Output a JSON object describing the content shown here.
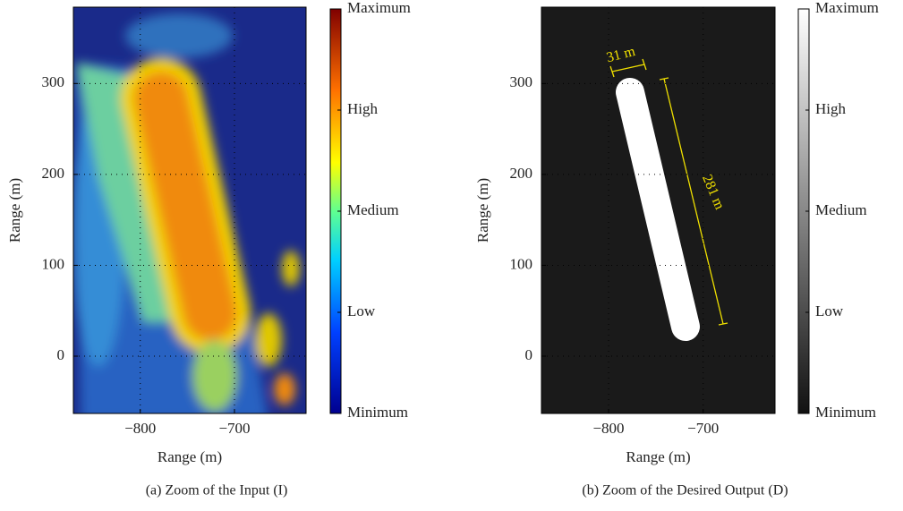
{
  "chart_data": [
    {
      "type": "image",
      "colormap": "jet",
      "xlabel": "Range (m)",
      "ylabel": "Range (m)",
      "xlim": [
        -871,
        -624
      ],
      "ylim": [
        -63,
        384
      ],
      "xticks": [
        {
          "value": -800,
          "label": "−800"
        },
        {
          "value": -700,
          "label": "−700"
        }
      ],
      "yticks": [
        0,
        100,
        200,
        300
      ],
      "grid": true,
      "colorbar_labels": [
        "Maximum",
        "High",
        "Medium",
        "Low",
        "Minimum"
      ],
      "caption": "(a)  Zoom of the Input (I)"
    },
    {
      "type": "image",
      "colormap": "gray",
      "xlabel": "Range (m)",
      "ylabel": "Range (m)",
      "xlim": [
        -871,
        -624
      ],
      "ylim": [
        -63,
        384
      ],
      "xticks": [
        {
          "value": -800,
          "label": "−800"
        },
        {
          "value": -700,
          "label": "−700"
        }
      ],
      "yticks": [
        0,
        100,
        200,
        300
      ],
      "grid": true,
      "colorbar_labels": [
        "Maximum",
        "High",
        "Medium",
        "Low",
        "Minimum"
      ],
      "annotations": [
        "31 m",
        "281 m"
      ],
      "caption": "(b)  Zoom of the Desired Output (D)"
    }
  ]
}
